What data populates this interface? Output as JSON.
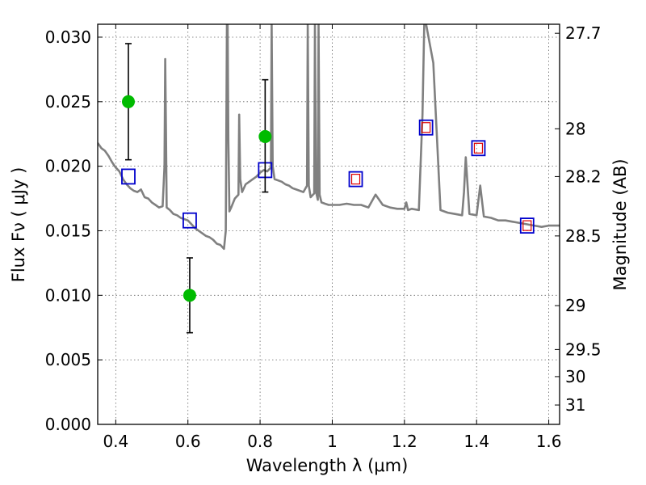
{
  "chart_data": {
    "type": "scatter",
    "xlabel": "Wavelength  λ (μm)",
    "ylabel": "Flux  Fν  ( μJy )",
    "y2label": "Magnitude (AB)",
    "xlim": [
      0.35,
      1.63
    ],
    "ylim": [
      0.0,
      0.031
    ],
    "grid": true,
    "x_ticks": [
      "0.4",
      "0.6",
      "0.8",
      "1",
      "1.2",
      "1.4",
      "1.6"
    ],
    "x_tick_values": [
      0.4,
      0.6,
      0.8,
      1.0,
      1.2,
      1.4,
      1.6
    ],
    "y_ticks": [
      "0.000",
      "0.005",
      "0.010",
      "0.015",
      "0.020",
      "0.025",
      "0.030"
    ],
    "y_tick_values": [
      0.0,
      0.005,
      0.01,
      0.015,
      0.02,
      0.025,
      0.03
    ],
    "y2_ticks": [
      {
        "label": "27.7",
        "flux": 0.0303
      },
      {
        "label": "28",
        "flux": 0.0229
      },
      {
        "label": "28.2",
        "flux": 0.0192
      },
      {
        "label": "28.5",
        "flux": 0.0146
      },
      {
        "label": "29",
        "flux": 0.0092
      },
      {
        "label": "29.5",
        "flux": 0.0058
      },
      {
        "label": "30",
        "flux": 0.0037
      },
      {
        "label": "31",
        "flux": 0.0015
      }
    ],
    "colors": {
      "model": "#808080",
      "observed": "#00bb00",
      "synthetic": "#0000cc",
      "synthetic_inner": "#dd0000",
      "errorbar": "#000000"
    },
    "model_spectrum": {
      "x": [
        0.35,
        0.36,
        0.37,
        0.38,
        0.39,
        0.4,
        0.41,
        0.42,
        0.43,
        0.44,
        0.45,
        0.46,
        0.47,
        0.48,
        0.49,
        0.5,
        0.51,
        0.52,
        0.53,
        0.535,
        0.537,
        0.539,
        0.541,
        0.55,
        0.56,
        0.57,
        0.58,
        0.59,
        0.6,
        0.61,
        0.62,
        0.63,
        0.64,
        0.65,
        0.66,
        0.67,
        0.68,
        0.69,
        0.7,
        0.705,
        0.708,
        0.71,
        0.712,
        0.715,
        0.72,
        0.73,
        0.74,
        0.742,
        0.745,
        0.75,
        0.76,
        0.77,
        0.78,
        0.79,
        0.8,
        0.81,
        0.82,
        0.83,
        0.832,
        0.835,
        0.84,
        0.85,
        0.86,
        0.87,
        0.88,
        0.89,
        0.9,
        0.91,
        0.92,
        0.93,
        0.932,
        0.935,
        0.94,
        0.95,
        0.952,
        0.955,
        0.96,
        0.962,
        0.965,
        0.97,
        0.98,
        0.99,
        1.0,
        1.02,
        1.04,
        1.06,
        1.08,
        1.1,
        1.12,
        1.14,
        1.16,
        1.18,
        1.2,
        1.205,
        1.21,
        1.22,
        1.24,
        1.25,
        1.255,
        1.26,
        1.28,
        1.3,
        1.31,
        1.32,
        1.34,
        1.36,
        1.365,
        1.37,
        1.38,
        1.4,
        1.41,
        1.42,
        1.44,
        1.46,
        1.48,
        1.5,
        1.52,
        1.54,
        1.56,
        1.58,
        1.6,
        1.63
      ],
      "y": [
        0.0218,
        0.0214,
        0.0212,
        0.0208,
        0.0203,
        0.0199,
        0.0196,
        0.019,
        0.0186,
        0.0183,
        0.0181,
        0.018,
        0.0182,
        0.0176,
        0.0175,
        0.0172,
        0.017,
        0.0168,
        0.0169,
        0.02,
        0.0283,
        0.023,
        0.0168,
        0.0166,
        0.0163,
        0.0162,
        0.016,
        0.0159,
        0.0158,
        0.0155,
        0.0152,
        0.015,
        0.0148,
        0.0146,
        0.0145,
        0.0143,
        0.014,
        0.0139,
        0.0136,
        0.015,
        0.031,
        0.031,
        0.022,
        0.0165,
        0.0168,
        0.0175,
        0.0178,
        0.024,
        0.019,
        0.018,
        0.0186,
        0.0188,
        0.019,
        0.0192,
        0.0195,
        0.0197,
        0.0196,
        0.0199,
        0.031,
        0.02,
        0.019,
        0.0189,
        0.0188,
        0.0186,
        0.0185,
        0.0183,
        0.0182,
        0.0181,
        0.018,
        0.0185,
        0.031,
        0.0185,
        0.0176,
        0.0179,
        0.031,
        0.018,
        0.0174,
        0.031,
        0.0178,
        0.0172,
        0.0171,
        0.017,
        0.017,
        0.017,
        0.0171,
        0.017,
        0.017,
        0.0168,
        0.0178,
        0.017,
        0.0168,
        0.0167,
        0.0167,
        0.0172,
        0.0166,
        0.0167,
        0.0166,
        0.024,
        0.031,
        0.031,
        0.028,
        0.0166,
        0.0165,
        0.0164,
        0.0163,
        0.0162,
        0.018,
        0.0207,
        0.0163,
        0.0162,
        0.0185,
        0.0161,
        0.016,
        0.0158,
        0.0158,
        0.0157,
        0.0156,
        0.0155,
        0.0154,
        0.0153,
        0.0154,
        0.0154
      ]
    },
    "observed": [
      {
        "x": 0.435,
        "y": 0.025,
        "yerr_low": 0.0205,
        "yerr_high": 0.0295
      },
      {
        "x": 0.605,
        "y": 0.01,
        "yerr_low": 0.0071,
        "yerr_high": 0.0129
      },
      {
        "x": 0.814,
        "y": 0.0223,
        "yerr_low": 0.018,
        "yerr_high": 0.0267
      }
    ],
    "synthetic": [
      {
        "x": 0.435,
        "y": 0.0192,
        "inner": false
      },
      {
        "x": 0.605,
        "y": 0.0158,
        "inner": false
      },
      {
        "x": 0.814,
        "y": 0.0197,
        "inner": false
      },
      {
        "x": 1.065,
        "y": 0.019,
        "inner": true
      },
      {
        "x": 1.26,
        "y": 0.023,
        "inner": true
      },
      {
        "x": 1.405,
        "y": 0.0214,
        "inner": true
      },
      {
        "x": 1.54,
        "y": 0.0154,
        "inner": true
      }
    ]
  }
}
